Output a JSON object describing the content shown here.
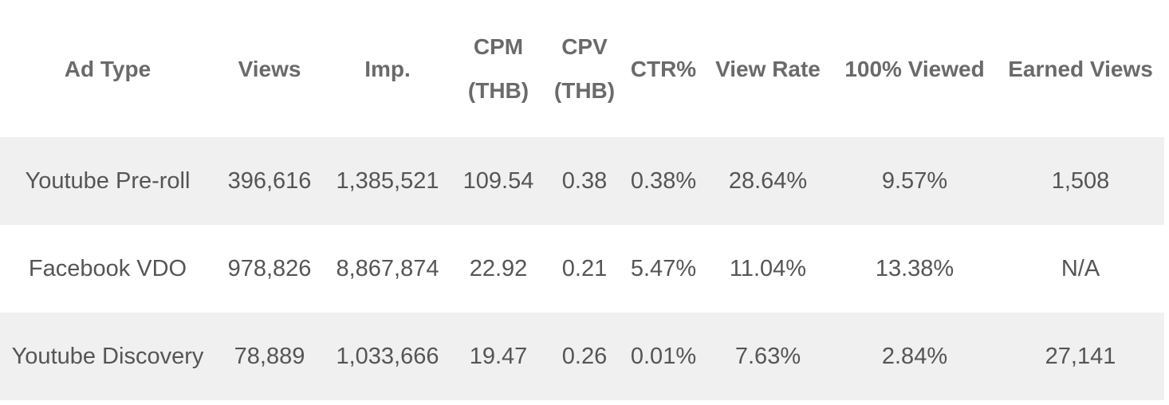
{
  "table": {
    "header": [
      "Ad Type",
      "Views",
      "Imp.",
      "CPM (THB)",
      "CPV (THB)",
      "CTR%",
      "View Rate",
      "100% Viewed",
      "Earned Views"
    ],
    "rows": [
      [
        "Youtube Pre-roll",
        "396,616",
        "1,385,521",
        "109.54",
        "0.38",
        "0.38%",
        "28.64%",
        "9.57%",
        "1,508"
      ],
      [
        "Facebook VDO",
        "978,826",
        "8,867,874",
        "22.92",
        "0.21",
        "5.47%",
        "11.04%",
        "13.38%",
        "N/A"
      ],
      [
        "Youtube Discovery",
        "78,889",
        "1,033,666",
        "19.47",
        "0.26",
        "0.01%",
        "7.63%",
        "2.84%",
        "27,141"
      ]
    ]
  }
}
